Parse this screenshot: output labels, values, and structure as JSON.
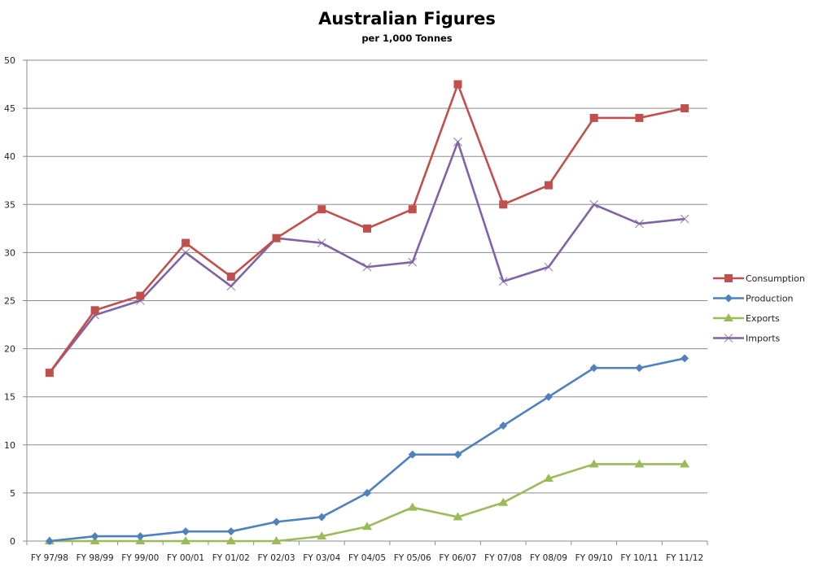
{
  "chart_data": {
    "type": "line",
    "title": "Australian Figures",
    "subtitle": "per 1,000 Tonnes",
    "xlabel": "",
    "ylabel": "",
    "ylim": [
      0,
      50
    ],
    "yticks": [
      0,
      5,
      10,
      15,
      20,
      25,
      30,
      35,
      40,
      45,
      50
    ],
    "grid": true,
    "legend_position": "right",
    "categories": [
      "FY 97/98",
      "FY 98/99",
      "FY 99/00",
      "FY 00/01",
      "FY 01/02",
      "FY 02/03",
      "FY 03/04",
      "FY 04/05",
      "FY 05/06",
      "FY 06/07",
      "FY 07/08",
      "FY 08/09",
      "FY 09/10",
      "FY 10/11",
      "FY 11/12"
    ],
    "series": [
      {
        "name": "Consumption",
        "color": "#C0504D",
        "marker": "square",
        "values": [
          17.5,
          24,
          25.5,
          31,
          27.5,
          31.5,
          34.5,
          32.5,
          34.5,
          47.5,
          35,
          37,
          44,
          44,
          45
        ]
      },
      {
        "name": "Production",
        "color": "#4F81BD",
        "marker": "diamond",
        "values": [
          0,
          0.5,
          0.5,
          1,
          1,
          2,
          2.5,
          5,
          9,
          9,
          12,
          15,
          18,
          18,
          19
        ]
      },
      {
        "name": "Exports",
        "color": "#9BBB59",
        "marker": "triangle",
        "values": [
          0,
          0,
          0,
          0,
          0,
          0,
          0.5,
          1.5,
          3.5,
          2.5,
          4,
          6.5,
          8,
          8,
          8
        ]
      },
      {
        "name": "Imports",
        "color": "#8064A2",
        "marker": "x",
        "values": [
          17.5,
          23.5,
          25,
          30,
          26.5,
          31.5,
          31,
          28.5,
          29,
          41.5,
          27,
          28.5,
          35,
          33,
          33.5
        ]
      }
    ]
  }
}
